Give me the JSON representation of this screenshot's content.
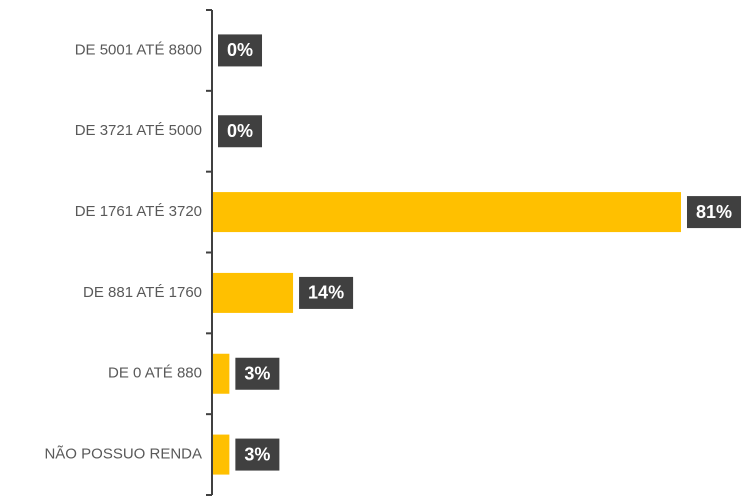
{
  "chart_data": {
    "type": "bar",
    "orientation": "horizontal",
    "categories": [
      "DE 5001 ATÉ 8800",
      "DE 3721 ATÉ 5000",
      "DE 1761 ATÉ 3720",
      "DE 881 ATÉ 1760",
      "DE 0 ATÉ 880",
      "NÃO POSSUO RENDA"
    ],
    "values": [
      0,
      0,
      81,
      14,
      3,
      3
    ],
    "value_labels": [
      "0%",
      "0%",
      "81%",
      "14%",
      "3%",
      "3%"
    ],
    "color": "#ffc000"
  }
}
